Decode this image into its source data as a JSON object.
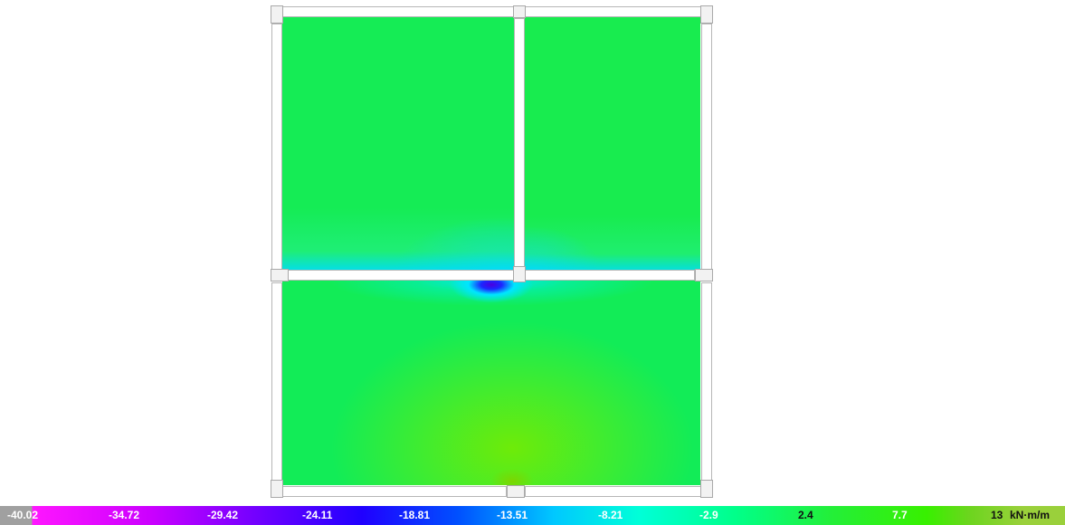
{
  "legend": {
    "ticks": [
      "-40.02",
      "-34.72",
      "-29.42",
      "-24.11",
      "-18.81",
      "-13.51",
      "-8.21",
      "-2.9",
      "2.4",
      "7.7",
      "13"
    ],
    "unit": "kN·m/m",
    "colors": {
      "min": "#ff16ff",
      "mid_low": "#2000ff",
      "mid": "#00c8ff",
      "mid_high": "#00ff8a",
      "max": "#9ad03b"
    }
  },
  "plot": {
    "background": "#ffffff",
    "beam_color": "#ffffff",
    "column_color": "#f2f2f2"
  }
}
